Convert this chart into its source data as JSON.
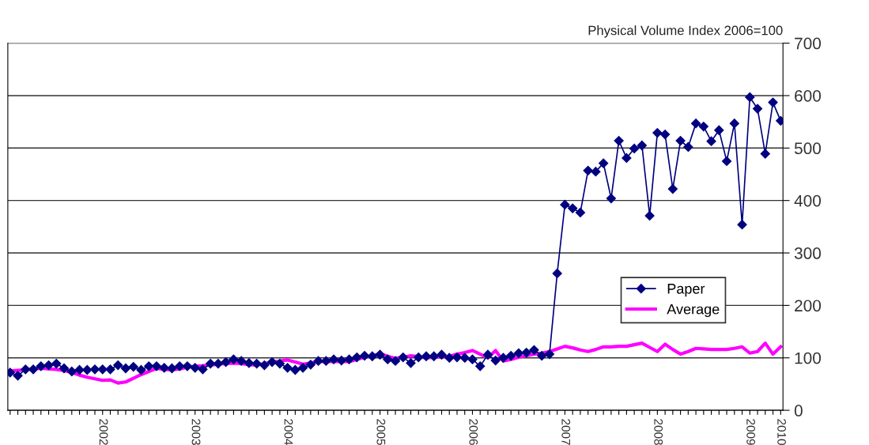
{
  "chart_data": {
    "type": "line",
    "ylabel": "Physical Volume Index 2006=100",
    "categories": [
      null,
      null,
      null,
      null,
      null,
      null,
      null,
      null,
      null,
      null,
      null,
      null,
      "2002",
      null,
      null,
      null,
      null,
      null,
      null,
      null,
      null,
      null,
      null,
      null,
      "2003",
      null,
      null,
      null,
      null,
      null,
      null,
      null,
      null,
      null,
      null,
      null,
      "2004",
      null,
      null,
      null,
      null,
      null,
      null,
      null,
      null,
      null,
      null,
      null,
      "2005",
      null,
      null,
      null,
      null,
      null,
      null,
      null,
      null,
      null,
      null,
      null,
      "2006",
      null,
      null,
      null,
      null,
      null,
      null,
      null,
      null,
      null,
      null,
      null,
      "2007",
      null,
      null,
      null,
      null,
      null,
      null,
      null,
      null,
      null,
      null,
      null,
      "2008",
      null,
      null,
      null,
      null,
      null,
      null,
      null,
      null,
      null,
      null,
      null,
      "2009",
      null,
      null,
      null,
      "2010"
    ],
    "series": [
      {
        "name": "Paper",
        "color": "#000080",
        "marker": "diamond",
        "values": [
          72,
          66,
          78,
          78,
          84,
          86,
          89,
          80,
          74,
          77,
          77,
          78,
          78,
          78,
          86,
          80,
          83,
          77,
          84,
          84,
          81,
          80,
          84,
          84,
          81,
          78,
          89,
          89,
          92,
          97,
          94,
          90,
          89,
          86,
          92,
          89,
          81,
          77,
          81,
          87,
          94,
          94,
          97,
          95,
          97,
          101,
          104,
          103,
          106,
          97,
          94,
          101,
          90,
          101,
          103,
          103,
          106,
          100,
          101,
          100,
          97,
          84,
          106,
          95,
          100,
          104,
          109,
          110,
          115,
          104,
          107,
          261,
          392,
          385,
          377,
          457,
          455,
          471,
          404,
          514,
          481,
          499,
          505,
          371,
          529,
          526,
          422,
          514,
          502,
          547,
          541,
          513,
          534,
          475,
          547,
          354,
          597,
          575,
          489,
          587,
          552
        ]
      },
      {
        "name": "Average",
        "color": "#ff00ff",
        "marker": "none",
        "values": [
          75,
          76,
          77,
          79,
          80,
          79,
          78,
          76,
          72,
          67,
          63,
          60,
          57,
          58,
          52,
          54,
          61,
          68,
          74,
          80,
          78,
          77,
          79,
          82,
          84,
          85,
          86,
          88,
          89,
          90,
          89,
          87,
          86,
          89,
          92,
          94,
          96,
          92,
          88,
          90,
          93,
          93,
          93,
          93,
          93,
          97,
          101,
          104,
          108,
          103,
          99,
          101,
          104,
          102,
          100,
          101,
          102,
          103,
          107,
          110,
          114,
          107,
          100,
          114,
          94,
          97,
          101,
          104,
          107,
          109,
          112,
          117,
          122,
          119,
          115,
          112,
          116,
          121,
          121,
          122,
          122,
          125,
          128,
          120,
          112,
          126,
          116,
          107,
          112,
          118,
          117,
          116,
          116,
          116,
          118,
          121,
          109,
          112,
          128,
          107,
          121
        ]
      }
    ],
    "ylim": [
      0,
      700
    ],
    "yticks": [
      0,
      100,
      200,
      300,
      400,
      500,
      600,
      700
    ],
    "grid": "y",
    "legend": "center right",
    "line_style": "solid"
  }
}
